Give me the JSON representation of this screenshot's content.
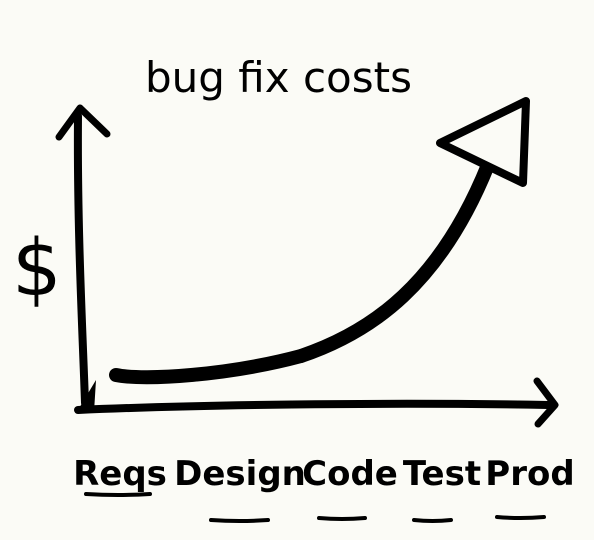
{
  "chart_data": {
    "type": "line",
    "title": "bug fix costs",
    "xlabel": "",
    "ylabel": "$",
    "categories": [
      "Reqs",
      "Design",
      "Code",
      "Test",
      "Prod"
    ],
    "series": [
      {
        "values": [
          1,
          3,
          10,
          25,
          60
        ]
      }
    ],
    "grid": false,
    "legend": "none",
    "colors": {
      "ink": "#000000",
      "paper": "#fbfbf6"
    }
  }
}
